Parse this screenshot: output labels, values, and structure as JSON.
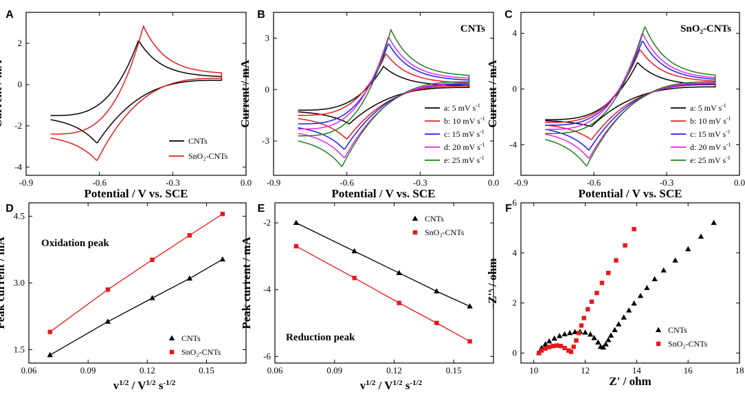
{
  "figure": {
    "panels": [
      "A",
      "B",
      "C",
      "D",
      "E",
      "F"
    ]
  },
  "chart_data": [
    {
      "id": "A",
      "type": "line",
      "title": "",
      "xlabel": "Potential / V vs. SCE",
      "ylabel": "Current / mA",
      "xlim": [
        -0.9,
        0.0
      ],
      "ylim": [
        -4.4,
        3.5
      ],
      "xticks": [
        "-0.9",
        "-0.6",
        "-0.3",
        "0.0"
      ],
      "xtick_values": [
        -0.9,
        -0.6,
        -0.3,
        0.0
      ],
      "yticks": [
        "-4",
        "-2",
        "0",
        "2"
      ],
      "ytick_values": [
        -4,
        -2,
        0,
        2
      ],
      "legend_position": "bottom-right",
      "series": [
        {
          "name": "CNTs",
          "color": "#000000",
          "ep_ox": -0.44,
          "ep_red": -0.61,
          "i_ox": 2.15,
          "i_red": -2.85,
          "i_start": -1.5,
          "i_end": 0.35
        },
        {
          "name": "SnO₂-CNTs",
          "color": "#e8191b",
          "ep_ox": -0.42,
          "ep_red": -0.61,
          "i_ox": 2.85,
          "i_red": -3.7,
          "i_start": -2.4,
          "i_end": 0.5
        }
      ]
    },
    {
      "id": "B",
      "type": "line",
      "title": "CNTs",
      "xlabel": "Potential / V vs. SCE",
      "ylabel": "Current / mA",
      "xlim": [
        -0.9,
        0.0
      ],
      "ylim": [
        -5.0,
        4.5
      ],
      "xticks": [
        "-0.9",
        "-0.6",
        "-0.3",
        "0.0"
      ],
      "xtick_values": [
        -0.9,
        -0.6,
        -0.3,
        0.0
      ],
      "yticks": [
        "-3",
        "0",
        "3"
      ],
      "ytick_values": [
        -3,
        0,
        3
      ],
      "legend_position": "bottom-right",
      "series": [
        {
          "name": "a: 5 mV s",
          "color": "#000000",
          "ep_ox": -0.45,
          "ep_red": -0.59,
          "i_ox": 1.35,
          "i_red": -2.0,
          "i_start": -1.2,
          "i_end": 0.2
        },
        {
          "name": "b: 10 mV s",
          "color": "#e8191b",
          "ep_ox": -0.44,
          "ep_red": -0.6,
          "i_ox": 2.1,
          "i_red": -2.9,
          "i_start": -1.5,
          "i_end": 0.35
        },
        {
          "name": "c: 15 mV s",
          "color": "#1a1aff",
          "ep_ox": -0.43,
          "ep_red": -0.61,
          "i_ox": 2.7,
          "i_red": -3.5,
          "i_start": -2.0,
          "i_end": 0.5
        },
        {
          "name": "d: 20 mV s",
          "color": "#ee1fee",
          "ep_ox": -0.43,
          "ep_red": -0.61,
          "i_ox": 3.1,
          "i_red": -4.0,
          "i_start": -2.3,
          "i_end": 0.6
        },
        {
          "name": "e: 25 mV s",
          "color": "#1b7d1b",
          "ep_ox": -0.42,
          "ep_red": -0.62,
          "i_ox": 3.5,
          "i_red": -4.5,
          "i_start": -2.7,
          "i_end": 0.75
        }
      ]
    },
    {
      "id": "C",
      "type": "line",
      "title": "SnO₂-CNTs",
      "xlabel": "Potential / V vs. SCE",
      "ylabel": "Current / mA",
      "xlim": [
        -0.9,
        0.0
      ],
      "ylim": [
        -6.2,
        5.5
      ],
      "xticks": [
        "-0.9",
        "-0.6",
        "-0.3",
        "0.0"
      ],
      "xtick_values": [
        -0.9,
        -0.6,
        -0.3,
        0.0
      ],
      "yticks": [
        "-4",
        "0",
        "4"
      ],
      "ytick_values": [
        -4,
        0,
        4
      ],
      "legend_position": "bottom-right",
      "series": [
        {
          "name": "a: 5 mV s",
          "color": "#000000",
          "ep_ox": -0.42,
          "ep_red": -0.61,
          "i_ox": 1.9,
          "i_red": -2.7,
          "i_start": -2.2,
          "i_end": 0.25
        },
        {
          "name": "b: 10 mV s",
          "color": "#e8191b",
          "ep_ox": -0.41,
          "ep_red": -0.61,
          "i_ox": 2.85,
          "i_red": -3.65,
          "i_start": -2.4,
          "i_end": 0.5
        },
        {
          "name": "c: 15 mV s",
          "color": "#1a1aff",
          "ep_ox": -0.4,
          "ep_red": -0.62,
          "i_ox": 3.5,
          "i_red": -4.4,
          "i_start": -2.6,
          "i_end": 0.6
        },
        {
          "name": "d: 20 mV s",
          "color": "#ee1fee",
          "ep_ox": -0.4,
          "ep_red": -0.62,
          "i_ox": 4.05,
          "i_red": -5.0,
          "i_start": -2.9,
          "i_end": 0.7
        },
        {
          "name": "e: 25 mV s",
          "color": "#1b7d1b",
          "ep_ox": -0.39,
          "ep_red": -0.63,
          "i_ox": 4.5,
          "i_red": -5.55,
          "i_start": -3.2,
          "i_end": 0.85
        }
      ]
    },
    {
      "id": "D",
      "type": "scatter",
      "title": "",
      "annotation": "Oxidation peak",
      "xlabel": "v^1/2 / V^1/2 s^-1/2",
      "ylabel": "Peak current / mA",
      "xlim": [
        0.06,
        0.17
      ],
      "ylim": [
        1.2,
        4.8
      ],
      "xticks": [
        "0.06",
        "0.09",
        "0.12",
        "0.15"
      ],
      "xtick_values": [
        0.06,
        0.09,
        0.12,
        0.15
      ],
      "yticks": [
        "1.5",
        "3.0",
        "4.5"
      ],
      "ytick_values": [
        1.5,
        3.0,
        4.5
      ],
      "legend_position": "bottom-right",
      "x": [
        0.0707,
        0.1,
        0.1225,
        0.1414,
        0.1581
      ],
      "series": [
        {
          "name": "CNTs",
          "color": "#000000",
          "marker": "triangle",
          "values": [
            1.38,
            2.13,
            2.66,
            3.1,
            3.53
          ]
        },
        {
          "name": "SnO₂-CNTs",
          "color": "#e8191b",
          "marker": "square",
          "values": [
            1.9,
            2.85,
            3.52,
            4.07,
            4.55
          ]
        }
      ]
    },
    {
      "id": "E",
      "type": "scatter",
      "title": "",
      "annotation": "Reduction peak",
      "xlabel": "v^1/2 / V^1/2 s^-1/2",
      "ylabel": "Peak current / mA",
      "xlim": [
        0.06,
        0.17
      ],
      "ylim": [
        -6.2,
        -1.4
      ],
      "xticks": [
        "0.06",
        "0.09",
        "0.12",
        "0.15"
      ],
      "xtick_values": [
        0.06,
        0.09,
        0.12,
        0.15
      ],
      "yticks": [
        "-6",
        "-4",
        "-2"
      ],
      "ytick_values": [
        -6,
        -4,
        -2
      ],
      "legend_position": "top-right",
      "x": [
        0.0707,
        0.1,
        0.1225,
        0.1414,
        0.1581
      ],
      "series": [
        {
          "name": "CNTs",
          "color": "#000000",
          "marker": "triangle",
          "values": [
            -2.0,
            -2.85,
            -3.5,
            -4.05,
            -4.5
          ]
        },
        {
          "name": "SnO₂-CNTs",
          "color": "#e8191b",
          "marker": "square",
          "values": [
            -2.7,
            -3.65,
            -4.4,
            -5.0,
            -5.55
          ]
        }
      ]
    },
    {
      "id": "F",
      "type": "scatter",
      "title": "",
      "xlabel": "Z' / ohm",
      "ylabel": "-Z'' / ohm",
      "xlim": [
        9.5,
        18.0
      ],
      "ylim": [
        -0.4,
        6.0
      ],
      "xticks": [
        "10",
        "12",
        "14",
        "16",
        "18"
      ],
      "xtick_values": [
        10,
        12,
        14,
        16,
        18
      ],
      "yticks": [
        "0",
        "2",
        "4",
        "6"
      ],
      "ytick_values": [
        0,
        2,
        4,
        6
      ],
      "legend_position": "bottom-right",
      "series": [
        {
          "name": "CNTs",
          "color": "#000000",
          "marker": "triangle",
          "points": [
            [
              10.2,
              0.0
            ],
            [
              10.3,
              0.2
            ],
            [
              10.45,
              0.35
            ],
            [
              10.6,
              0.47
            ],
            [
              10.8,
              0.58
            ],
            [
              11.0,
              0.68
            ],
            [
              11.2,
              0.75
            ],
            [
              11.4,
              0.8
            ],
            [
              11.6,
              0.84
            ],
            [
              11.8,
              0.85
            ],
            [
              12.0,
              0.82
            ],
            [
              12.2,
              0.74
            ],
            [
              12.35,
              0.6
            ],
            [
              12.5,
              0.42
            ],
            [
              12.6,
              0.25
            ],
            [
              12.7,
              0.22
            ],
            [
              12.8,
              0.35
            ],
            [
              12.9,
              0.52
            ],
            [
              13.0,
              0.7
            ],
            [
              13.15,
              0.92
            ],
            [
              13.3,
              1.15
            ],
            [
              13.5,
              1.42
            ],
            [
              13.7,
              1.7
            ],
            [
              13.9,
              1.98
            ],
            [
              14.15,
              2.28
            ],
            [
              14.4,
              2.6
            ],
            [
              14.7,
              2.95
            ],
            [
              15.05,
              3.3
            ],
            [
              15.5,
              3.7
            ],
            [
              16.0,
              4.15
            ],
            [
              16.5,
              4.65
            ],
            [
              17.0,
              5.2
            ]
          ]
        },
        {
          "name": "SnO₂-CNTs",
          "color": "#e8191b",
          "marker": "square",
          "points": [
            [
              10.2,
              0.0
            ],
            [
              10.3,
              0.1
            ],
            [
              10.45,
              0.18
            ],
            [
              10.6,
              0.24
            ],
            [
              10.75,
              0.28
            ],
            [
              10.9,
              0.3
            ],
            [
              11.05,
              0.28
            ],
            [
              11.2,
              0.2
            ],
            [
              11.35,
              0.1
            ],
            [
              11.45,
              0.05
            ],
            [
              11.55,
              0.25
            ],
            [
              11.65,
              0.5
            ],
            [
              11.75,
              0.8
            ],
            [
              11.85,
              1.1
            ],
            [
              11.95,
              1.4
            ],
            [
              12.1,
              1.75
            ],
            [
              12.25,
              2.05
            ],
            [
              12.45,
              2.4
            ],
            [
              12.65,
              2.8
            ],
            [
              12.9,
              3.2
            ],
            [
              13.2,
              3.7
            ],
            [
              13.55,
              4.3
            ],
            [
              13.9,
              4.95
            ]
          ]
        }
      ]
    }
  ]
}
